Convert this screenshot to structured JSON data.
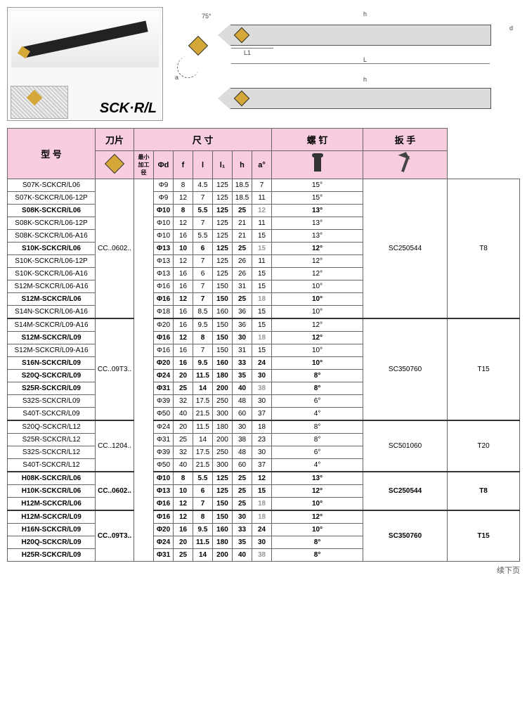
{
  "product_label": "SCK·R/L",
  "diagram_labels": {
    "l1": "L1",
    "l": "L",
    "h": "h",
    "d": "d",
    "a": "a",
    "angle": "75°",
    "f": "f"
  },
  "headers": {
    "model": "型 号",
    "insert": "刀片",
    "dimensions": "尺 寸",
    "screw": "螺 钉",
    "wrench": "扳 手",
    "minwork": "最小加工径",
    "phid": "Φd",
    "f": "f",
    "l": "l",
    "l1": "l₁",
    "h": "h",
    "a": "a°"
  },
  "footer": "续下页",
  "groups": [
    {
      "insert": "CC..0602..",
      "screw": "SC250544",
      "wrench": "T8",
      "sep": false,
      "rows": [
        {
          "b": 0,
          "m": "S07K-SCKCR/L06",
          "d": "Φ9",
          "f": "8",
          "l": "4.5",
          "l1": "125",
          "h": "18.5",
          "hh": "7",
          "a": "15°"
        },
        {
          "b": 0,
          "m": "S07K-SCKCR/L06-12P",
          "d": "Φ9",
          "f": "12",
          "l": "7",
          "l1": "125",
          "h": "18.5",
          "hh": "11",
          "a": "15°"
        },
        {
          "b": 1,
          "m": "S08K-SCKCR/L06",
          "d": "Φ10",
          "f": "8",
          "l": "5.5",
          "l1": "125",
          "h": "25",
          "hh": "12",
          "a": "13°",
          "hf": 1
        },
        {
          "b": 0,
          "m": "S08K-SCKCR/L06-12P",
          "d": "Φ10",
          "f": "12",
          "l": "7",
          "l1": "125",
          "h": "21",
          "hh": "11",
          "a": "13°"
        },
        {
          "b": 0,
          "m": "S08K-SCKCR/L06-A16",
          "d": "Φ10",
          "f": "16",
          "l": "5.5",
          "l1": "125",
          "h": "21",
          "hh": "15",
          "a": "13°"
        },
        {
          "b": 1,
          "m": "S10K-SCKCR/L06",
          "d": "Φ13",
          "f": "10",
          "l": "6",
          "l1": "125",
          "h": "25",
          "hh": "15",
          "a": "12°",
          "hf": 1
        },
        {
          "b": 0,
          "m": "S10K-SCKCR/L06-12P",
          "d": "Φ13",
          "f": "12",
          "l": "7",
          "l1": "125",
          "h": "26",
          "hh": "11",
          "a": "12°"
        },
        {
          "b": 0,
          "m": "S10K-SCKCR/L06-A16",
          "d": "Φ13",
          "f": "16",
          "l": "6",
          "l1": "125",
          "h": "26",
          "hh": "15",
          "a": "12°"
        },
        {
          "b": 0,
          "m": "S12M-SCKCR/L06-A16",
          "d": "Φ16",
          "f": "16",
          "l": "7",
          "l1": "150",
          "h": "31",
          "hh": "15",
          "a": "10°"
        },
        {
          "b": 1,
          "m": "S12M-SCKCR/L06",
          "d": "Φ16",
          "f": "12",
          "l": "7",
          "l1": "150",
          "h": "25",
          "hh": "18",
          "a": "10°",
          "hf": 1
        },
        {
          "b": 0,
          "m": "S14N-SCKCR/L06-A16",
          "d": "Φ18",
          "f": "16",
          "l": "8.5",
          "l1": "160",
          "h": "36",
          "hh": "15",
          "a": "10°"
        }
      ]
    },
    {
      "insert": "CC..09T3..",
      "screw": "SC350760",
      "wrench": "T15",
      "sep": true,
      "rows": [
        {
          "b": 0,
          "m": "S14M-SCKCR/L09-A16",
          "d": "Φ20",
          "f": "16",
          "l": "9.5",
          "l1": "150",
          "h": "36",
          "hh": "15",
          "a": "12°"
        },
        {
          "b": 1,
          "m": "S12M-SCKCR/L09",
          "d": "Φ16",
          "f": "12",
          "l": "8",
          "l1": "150",
          "h": "30",
          "hh": "18",
          "a": "12°",
          "hf": 1
        },
        {
          "b": 0,
          "m": "S12M-SCKCR/L09-A16",
          "d": "Φ16",
          "f": "16",
          "l": "7",
          "l1": "150",
          "h": "31",
          "hh": "15",
          "a": "10°"
        },
        {
          "b": 1,
          "m": "S16N-SCKCR/L09",
          "d": "Φ20",
          "f": "16",
          "l": "9.5",
          "l1": "160",
          "h": "33",
          "hh": "24",
          "a": "10°"
        },
        {
          "b": 1,
          "m": "S20Q-SCKCR/L09",
          "d": "Φ24",
          "f": "20",
          "l": "11.5",
          "l1": "180",
          "h": "35",
          "hh": "30",
          "a": "8°"
        },
        {
          "b": 1,
          "m": "S25R-SCKCR/L09",
          "d": "Φ31",
          "f": "25",
          "l": "14",
          "l1": "200",
          "h": "40",
          "hh": "38",
          "a": "8°",
          "hf": 1
        },
        {
          "b": 0,
          "m": "S32S-SCKCR/L09",
          "d": "Φ39",
          "f": "32",
          "l": "17.5",
          "l1": "250",
          "h": "48",
          "hh": "30",
          "a": "6°"
        },
        {
          "b": 0,
          "m": "S40T-SCKCR/L09",
          "d": "Φ50",
          "f": "40",
          "l": "21.5",
          "l1": "300",
          "h": "60",
          "hh": "37",
          "a": "4°"
        }
      ]
    },
    {
      "insert": "CC..1204..",
      "screw": "SC501060",
      "wrench": "T20",
      "sep": true,
      "rows": [
        {
          "b": 0,
          "m": "S20Q-SCKCR/L12",
          "d": "Φ24",
          "f": "20",
          "l": "11.5",
          "l1": "180",
          "h": "30",
          "hh": "18",
          "a": "8°"
        },
        {
          "b": 0,
          "m": "S25R-SCKCR/L12",
          "d": "Φ31",
          "f": "25",
          "l": "14",
          "l1": "200",
          "h": "38",
          "hh": "23",
          "a": "8°"
        },
        {
          "b": 0,
          "m": "S32S-SCKCR/L12",
          "d": "Φ39",
          "f": "32",
          "l": "17.5",
          "l1": "250",
          "h": "48",
          "hh": "30",
          "a": "6°"
        },
        {
          "b": 0,
          "m": "S40T-SCKCR/L12",
          "d": "Φ50",
          "f": "40",
          "l": "21.5",
          "l1": "300",
          "h": "60",
          "hh": "37",
          "a": "4°"
        }
      ]
    },
    {
      "insert": "CC..0602..",
      "screw": "SC250544",
      "wrench": "T8",
      "sep": true,
      "rows": [
        {
          "b": 1,
          "m": "H08K-SCKCR/L06",
          "d": "Φ10",
          "f": "8",
          "l": "5.5",
          "l1": "125",
          "h": "25",
          "hh": "12",
          "a": "13°"
        },
        {
          "b": 1,
          "m": "H10K-SCKCR/L06",
          "d": "Φ13",
          "f": "10",
          "l": "6",
          "l1": "125",
          "h": "25",
          "hh": "15",
          "a": "12°"
        },
        {
          "b": 1,
          "m": "H12M-SCKCR/L06",
          "d": "Φ16",
          "f": "12",
          "l": "7",
          "l1": "150",
          "h": "25",
          "hh": "18",
          "a": "10°",
          "hf": 1
        }
      ]
    },
    {
      "insert": "CC..09T3..",
      "screw": "SC350760",
      "wrench": "T15",
      "sep": true,
      "rows": [
        {
          "b": 1,
          "m": "H12M-SCKCR/L09",
          "d": "Φ16",
          "f": "12",
          "l": "8",
          "l1": "150",
          "h": "30",
          "hh": "18",
          "a": "12°",
          "hf": 1
        },
        {
          "b": 1,
          "m": "H16N-SCKCR/L09",
          "d": "Φ20",
          "f": "16",
          "l": "9.5",
          "l1": "160",
          "h": "33",
          "hh": "24",
          "a": "10°"
        },
        {
          "b": 1,
          "m": "H20Q-SCKCR/L09",
          "d": "Φ24",
          "f": "20",
          "l": "11.5",
          "l1": "180",
          "h": "35",
          "hh": "30",
          "a": "8°"
        },
        {
          "b": 1,
          "m": "H25R-SCKCR/L09",
          "d": "Φ31",
          "f": "25",
          "l": "14",
          "l1": "200",
          "h": "40",
          "hh": "38",
          "a": "8°",
          "hf": 1
        }
      ]
    }
  ]
}
